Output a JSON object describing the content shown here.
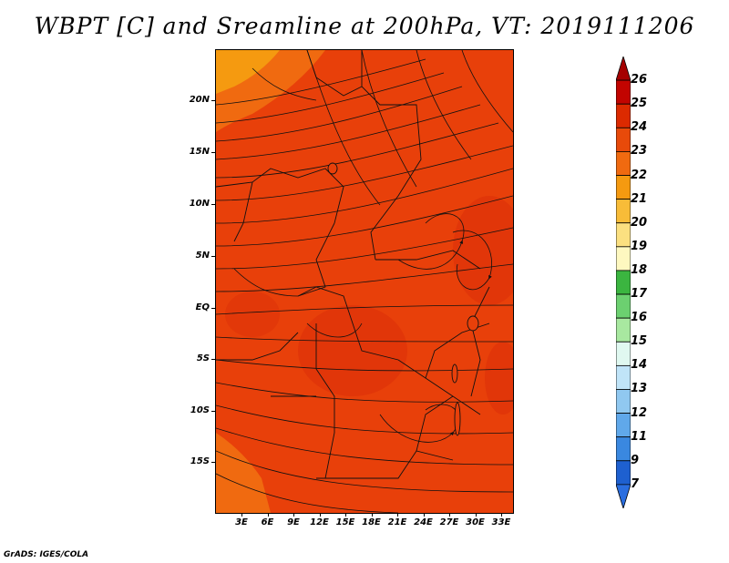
{
  "title": "WBPT [C] and Sreamline at 200hPa, VT: 2019111206",
  "footer": "GrADS: IGES/COLA",
  "lat_ticks": [
    "20N",
    "15N",
    "10N",
    "5N",
    "EQ",
    "5S",
    "10S",
    "15S"
  ],
  "lon_ticks": [
    "3E",
    "6E",
    "9E",
    "12E",
    "15E",
    "18E",
    "21E",
    "24E",
    "27E",
    "30E",
    "33E"
  ],
  "colorbar": {
    "labels": [
      "26",
      "25",
      "24",
      "23",
      "22",
      "21",
      "20",
      "19",
      "18",
      "17",
      "16",
      "15",
      "14",
      "13",
      "12",
      "11",
      "9",
      "7"
    ],
    "colors": [
      "#a50000",
      "#c20400",
      "#dc2a00",
      "#e84a0a",
      "#f06a10",
      "#f59a10",
      "#f8bc38",
      "#fbe080",
      "#fef8c0",
      "#3bb540",
      "#6cd070",
      "#a8e8a0",
      "#e0f8f0",
      "#c0e4f8",
      "#90c8f0",
      "#60a8ea",
      "#3a88e0",
      "#1e60d0",
      "#2a6ee0"
    ]
  },
  "map": {
    "variable": "WBPT",
    "units": "C",
    "level": "200hPa",
    "valid_time": "2019111206",
    "region": "Central/East Africa, 0E–35E, 20S–25N",
    "dominant_value_range": "23–24",
    "features": [
      "streamlines with arrowheads",
      "country borders",
      "coastlines",
      "lakes"
    ]
  }
}
